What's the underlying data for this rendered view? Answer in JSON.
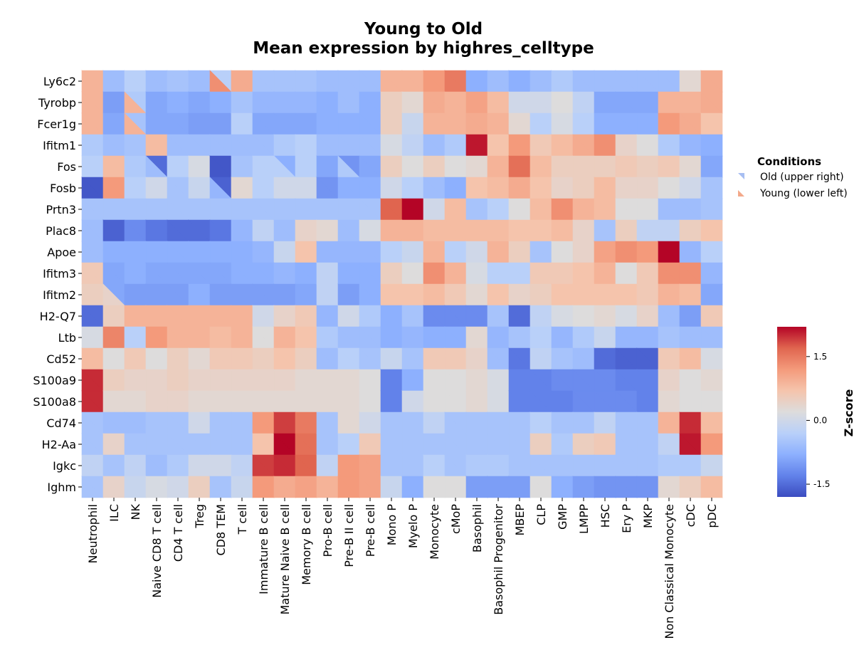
{
  "chart_data": {
    "type": "heatmap",
    "title": "Young to Old",
    "subtitle": "Mean expression by highres_celltype",
    "legend": {
      "title": "Conditions",
      "entries": [
        {
          "label": "Old (upper right)",
          "color": "#a7bef2"
        },
        {
          "label": "Young (lower left)",
          "color": "#f3a98a"
        }
      ]
    },
    "colorbar": {
      "label": "Z-score",
      "ticks": [
        "1.5",
        "0.0",
        "-1.5"
      ],
      "tick_values": [
        1.5,
        0.0,
        -1.5
      ],
      "range": [
        -1.8,
        2.2
      ],
      "colormap": "coolwarm"
    },
    "genes": [
      "Ly6c2",
      "Tyrobp",
      "Fcer1g",
      "Ifitm1",
      "Fos",
      "Fosb",
      "Prtn3",
      "Plac8",
      "Apoe",
      "Ifitm3",
      "Ifitm2",
      "H2-Q7",
      "Ltb",
      "Cd52",
      "S100a9",
      "S100a8",
      "Cd74",
      "H2-Aa",
      "Igkc",
      "Ighm"
    ],
    "cell_types": [
      "Neutrophil",
      "ILC",
      "NK",
      "Naive CD8 T cell",
      "CD4 T cell",
      "Treg",
      "CD8 TEM",
      "T cell",
      "Immature B cell",
      "Mature Naive B cell",
      "Memory B cell",
      "Pro-B cell",
      "Pre-B II cell",
      "Pre-B cell",
      "Mono P",
      "Myelo P",
      "Monocyte",
      "cMoP",
      "Basophil",
      "Basophil Progenitor",
      "MBEP",
      "CLP",
      "GMP",
      "LMPP",
      "HSC",
      "Ery P",
      "MKP",
      "Non Classical Monocyte",
      "cDC",
      "pDC"
    ],
    "old": [
      [
        0.9,
        -0.6,
        -0.3,
        -0.6,
        -0.5,
        -0.6,
        -0.3,
        1.0,
        -0.5,
        -0.5,
        -0.5,
        -0.6,
        -0.6,
        -0.6,
        0.9,
        0.9,
        1.2,
        1.5,
        -0.8,
        -0.6,
        -0.8,
        -0.6,
        -0.4,
        -0.6,
        -0.6,
        -0.6,
        -0.6,
        -0.6,
        0.3,
        1.0
      ],
      [
        0.9,
        -1.0,
        -0.4,
        -0.9,
        -0.8,
        -0.9,
        -0.8,
        -0.5,
        -0.7,
        -0.7,
        -0.7,
        -0.8,
        -0.6,
        -0.8,
        0.5,
        0.3,
        1.0,
        0.9,
        1.1,
        0.8,
        0.0,
        0.0,
        0.2,
        -0.2,
        -0.9,
        -0.9,
        -0.9,
        0.9,
        0.9,
        1.0
      ],
      [
        0.9,
        -0.9,
        -0.5,
        -0.9,
        -0.9,
        -1.0,
        -1.0,
        -0.3,
        -0.9,
        -0.9,
        -0.9,
        -0.8,
        -0.8,
        -0.8,
        0.5,
        -0.1,
        0.9,
        0.9,
        1.0,
        0.9,
        0.3,
        -0.3,
        0.1,
        -0.3,
        -0.8,
        -0.8,
        -0.8,
        1.2,
        1.0,
        0.7
      ],
      [
        -0.4,
        -0.6,
        -0.5,
        0.8,
        -0.6,
        -0.6,
        -0.6,
        -0.6,
        -0.6,
        -0.4,
        -0.3,
        -0.6,
        -0.6,
        -0.6,
        0.1,
        -0.2,
        -0.6,
        -0.4,
        2.1,
        0.7,
        1.2,
        0.6,
        0.8,
        1.0,
        1.3,
        0.4,
        0.2,
        -0.4,
        -0.7,
        -0.8
      ],
      [
        -0.3,
        0.8,
        -0.4,
        -1.5,
        -0.3,
        0.1,
        -1.7,
        -0.5,
        -0.3,
        -0.8,
        -0.3,
        -0.9,
        -1.1,
        -0.9,
        0.5,
        0.2,
        0.5,
        0.2,
        0.3,
        0.9,
        1.6,
        0.8,
        0.5,
        0.5,
        0.5,
        0.6,
        0.5,
        0.6,
        0.3,
        -0.9
      ],
      [
        -1.7,
        1.2,
        -0.3,
        0.0,
        -0.5,
        -0.1,
        -1.6,
        0.3,
        -0.3,
        0.0,
        0.0,
        -1.1,
        -0.8,
        -0.8,
        0.0,
        -0.3,
        -0.6,
        -0.8,
        0.7,
        0.8,
        1.0,
        0.7,
        0.4,
        0.5,
        0.8,
        0.4,
        0.4,
        0.2,
        0.0,
        -0.5
      ],
      [
        -0.5,
        -0.5,
        -0.5,
        -0.5,
        -0.5,
        -0.5,
        -0.5,
        -0.5,
        -0.5,
        -0.5,
        -0.5,
        -0.5,
        -0.5,
        -0.5,
        1.7,
        2.2,
        0.0,
        0.8,
        -0.5,
        -0.3,
        0.2,
        0.8,
        1.3,
        0.9,
        0.8,
        0.2,
        0.2,
        -0.6,
        -0.6,
        -0.5
      ],
      [
        -0.6,
        -1.6,
        -1.2,
        -1.4,
        -1.5,
        -1.5,
        -1.4,
        -0.7,
        -0.2,
        -0.6,
        0.4,
        0.3,
        -0.6,
        0.1,
        0.9,
        0.9,
        0.8,
        0.8,
        0.8,
        0.8,
        0.7,
        0.7,
        0.8,
        0.4,
        -0.5,
        0.5,
        -0.2,
        -0.2,
        0.5,
        0.7
      ],
      [
        -0.6,
        -0.8,
        -0.8,
        -0.8,
        -0.8,
        -0.8,
        -0.8,
        -0.8,
        -0.7,
        -0.1,
        0.7,
        -0.7,
        -0.7,
        -0.7,
        -0.3,
        -0.1,
        0.9,
        -0.3,
        0.0,
        0.9,
        0.5,
        -0.5,
        0.2,
        0.4,
        1.1,
        1.3,
        1.2,
        2.2,
        -0.7,
        -0.3
      ],
      [
        0.6,
        -0.9,
        -0.8,
        -0.9,
        -0.9,
        -0.9,
        -0.9,
        -0.8,
        -0.8,
        -0.7,
        -0.8,
        -0.2,
        -0.8,
        -0.8,
        0.5,
        0.2,
        1.3,
        0.9,
        0.1,
        -0.3,
        -0.3,
        0.6,
        0.6,
        0.7,
        0.9,
        0.2,
        0.6,
        1.3,
        1.3,
        -0.7
      ],
      [
        0.5,
        -0.9,
        -1.0,
        -1.0,
        -1.0,
        -0.8,
        -1.0,
        -1.0,
        -1.0,
        -1.0,
        -0.9,
        -0.2,
        -1.0,
        -0.8,
        0.7,
        0.7,
        0.8,
        0.6,
        0.3,
        0.7,
        0.4,
        0.5,
        0.7,
        0.7,
        0.7,
        0.7,
        0.6,
        0.9,
        0.8,
        -0.9
      ],
      [
        -1.5,
        0.5,
        0.9,
        0.9,
        0.9,
        0.9,
        0.9,
        0.9,
        0.0,
        0.4,
        0.6,
        -0.7,
        0.0,
        -0.4,
        -0.8,
        -0.5,
        -1.2,
        -1.2,
        -1.2,
        -0.5,
        -1.5,
        -0.2,
        0.1,
        0.2,
        0.3,
        0.1,
        0.4,
        -0.6,
        -1.0,
        0.6
      ],
      [
        0.1,
        1.4,
        -0.3,
        1.2,
        0.9,
        0.9,
        0.8,
        0.9,
        0.2,
        0.9,
        0.7,
        -0.4,
        -0.6,
        -0.6,
        -0.8,
        -0.7,
        -0.8,
        -0.8,
        0.3,
        -0.7,
        -0.5,
        -0.3,
        -0.7,
        -0.4,
        -0.1,
        -0.7,
        -0.7,
        -0.5,
        -0.6,
        -0.6
      ],
      [
        0.8,
        0.2,
        0.6,
        0.2,
        0.5,
        0.3,
        0.6,
        0.6,
        0.5,
        0.7,
        0.5,
        -0.6,
        -0.3,
        -0.5,
        -0.1,
        -0.5,
        0.6,
        0.6,
        0.4,
        -0.6,
        -1.4,
        -0.2,
        -0.5,
        -0.6,
        -1.5,
        -1.6,
        -1.6,
        0.6,
        0.8,
        0.1
      ],
      [
        2.0,
        0.5,
        0.4,
        0.4,
        0.5,
        0.4,
        0.4,
        0.4,
        0.4,
        0.4,
        0.3,
        0.3,
        0.3,
        0.2,
        -1.3,
        -0.8,
        0.2,
        0.2,
        0.3,
        0.1,
        -1.3,
        -1.3,
        -1.2,
        -1.2,
        -1.2,
        -1.3,
        -1.3,
        0.4,
        0.2,
        0.3
      ],
      [
        2.0,
        0.3,
        0.3,
        0.4,
        0.4,
        0.3,
        0.3,
        0.3,
        0.3,
        0.3,
        0.3,
        0.3,
        0.3,
        0.2,
        -1.3,
        0.0,
        0.2,
        0.2,
        0.3,
        0.1,
        -1.3,
        -1.3,
        -1.3,
        -1.2,
        -1.2,
        -1.2,
        -1.3,
        0.3,
        0.2,
        0.2
      ],
      [
        -0.5,
        -0.6,
        -0.6,
        -0.5,
        -0.5,
        0.0,
        -0.5,
        -0.5,
        1.2,
        1.9,
        1.5,
        -0.5,
        0.3,
        0.0,
        -0.5,
        -0.5,
        -0.2,
        -0.5,
        -0.5,
        -0.5,
        -0.5,
        -0.3,
        -0.5,
        -0.5,
        -0.2,
        -0.5,
        -0.5,
        0.9,
        2.0,
        0.8
      ],
      [
        -0.5,
        0.4,
        -0.5,
        -0.5,
        -0.5,
        -0.5,
        -0.5,
        -0.5,
        0.7,
        2.2,
        1.6,
        -0.5,
        -0.3,
        0.6,
        -0.5,
        -0.5,
        -0.5,
        -0.5,
        -0.5,
        -0.5,
        -0.5,
        0.5,
        -0.4,
        0.5,
        0.6,
        -0.5,
        -0.5,
        -0.2,
        2.1,
        1.2
      ],
      [
        -0.2,
        -0.5,
        -0.2,
        -0.6,
        -0.4,
        0.0,
        0.0,
        -0.2,
        1.9,
        2.0,
        1.7,
        -0.2,
        1.2,
        1.1,
        -0.5,
        -0.5,
        -0.3,
        -0.5,
        -0.4,
        -0.4,
        -0.5,
        -0.5,
        -0.5,
        -0.5,
        -0.5,
        -0.5,
        -0.5,
        -0.4,
        -0.4,
        -0.1
      ],
      [
        -0.5,
        0.4,
        -0.1,
        0.1,
        0.0,
        0.5,
        -0.5,
        -0.1,
        1.2,
        1.0,
        1.1,
        0.9,
        1.2,
        1.1,
        -0.1,
        -0.8,
        0.2,
        0.2,
        -1.0,
        -1.0,
        -1.0,
        0.2,
        -0.8,
        -1.0,
        -1.1,
        -1.1,
        -1.1,
        0.3,
        0.5,
        0.8
      ]
    ],
    "young": [
      [
        0.9,
        -0.6,
        -0.3,
        -0.6,
        -0.5,
        -0.6,
        1.3,
        1.0,
        -0.5,
        -0.5,
        -0.5,
        -0.6,
        -0.6,
        -0.6,
        0.9,
        0.9,
        1.2,
        1.5,
        -0.8,
        -0.6,
        -0.8,
        -0.6,
        -0.4,
        -0.6,
        -0.6,
        -0.6,
        -0.6,
        -0.6,
        0.3,
        1.0
      ],
      [
        0.9,
        -1.0,
        0.9,
        -0.9,
        -0.8,
        -0.9,
        -0.8,
        -0.5,
        -0.7,
        -0.7,
        -0.7,
        -0.8,
        -0.6,
        -0.8,
        0.5,
        0.3,
        1.0,
        0.9,
        1.1,
        0.8,
        0.0,
        0.0,
        0.2,
        -0.2,
        -0.9,
        -0.9,
        -0.9,
        0.9,
        0.9,
        1.0
      ],
      [
        0.9,
        -0.9,
        0.9,
        -0.9,
        -0.9,
        -1.0,
        -1.0,
        -0.3,
        -0.9,
        -0.9,
        -0.9,
        -0.8,
        -0.8,
        -0.8,
        0.5,
        -0.1,
        0.9,
        0.9,
        1.0,
        0.9,
        0.3,
        -0.3,
        0.1,
        -0.3,
        -0.8,
        -0.8,
        -0.8,
        1.2,
        1.0,
        0.7
      ],
      [
        -0.4,
        -0.6,
        -0.5,
        0.8,
        -0.6,
        -0.6,
        -0.6,
        -0.6,
        -0.6,
        -0.4,
        -0.3,
        -0.6,
        -0.6,
        -0.6,
        0.1,
        -0.2,
        -0.6,
        -0.4,
        2.1,
        0.7,
        1.2,
        0.6,
        0.8,
        1.0,
        1.3,
        0.4,
        0.2,
        -0.4,
        -0.7,
        -0.8
      ],
      [
        -0.3,
        0.8,
        -0.4,
        -0.6,
        -0.3,
        0.1,
        -1.7,
        -0.5,
        -0.3,
        -0.3,
        -0.3,
        -0.9,
        -0.4,
        -0.9,
        0.5,
        0.2,
        0.5,
        0.2,
        0.3,
        0.9,
        1.6,
        0.8,
        0.5,
        0.5,
        0.5,
        0.6,
        0.5,
        0.6,
        0.3,
        -0.9
      ],
      [
        -1.7,
        1.2,
        -0.3,
        0.0,
        -0.5,
        -0.1,
        -0.7,
        0.3,
        -0.3,
        0.0,
        0.0,
        -1.1,
        -0.8,
        -0.8,
        0.0,
        -0.3,
        -0.6,
        -0.8,
        0.7,
        0.8,
        1.0,
        0.7,
        0.4,
        0.5,
        0.8,
        0.4,
        0.4,
        0.2,
        0.0,
        -0.5
      ],
      [
        -0.5,
        -0.5,
        -0.5,
        -0.5,
        -0.5,
        -0.5,
        -0.5,
        -0.5,
        -0.5,
        -0.5,
        -0.5,
        -0.5,
        -0.5,
        -0.5,
        1.7,
        2.2,
        0.0,
        0.8,
        -0.5,
        -0.3,
        0.2,
        0.8,
        1.3,
        0.9,
        0.8,
        0.2,
        0.2,
        -0.6,
        -0.6,
        -0.5
      ],
      [
        -0.6,
        -1.6,
        -1.2,
        -1.4,
        -1.5,
        -1.5,
        -1.4,
        -0.7,
        -0.2,
        -0.6,
        0.4,
        0.3,
        -0.6,
        0.1,
        0.9,
        0.9,
        0.8,
        0.8,
        0.8,
        0.8,
        0.7,
        0.7,
        0.8,
        0.4,
        -0.5,
        0.5,
        -0.2,
        -0.2,
        0.5,
        0.7
      ],
      [
        -0.6,
        -0.8,
        -0.8,
        -0.8,
        -0.8,
        -0.8,
        -0.8,
        -0.8,
        -0.7,
        -0.1,
        0.7,
        -0.7,
        -0.7,
        -0.7,
        -0.3,
        -0.1,
        0.9,
        -0.3,
        0.0,
        0.9,
        0.5,
        -0.5,
        0.2,
        0.4,
        1.1,
        1.3,
        1.2,
        2.2,
        -0.7,
        -0.3
      ],
      [
        0.6,
        -0.9,
        -0.8,
        -0.9,
        -0.9,
        -0.9,
        -0.9,
        -0.8,
        -0.8,
        -0.7,
        -0.8,
        -0.2,
        -0.8,
        -0.8,
        0.5,
        0.2,
        1.3,
        0.9,
        0.1,
        -0.3,
        -0.3,
        0.6,
        0.6,
        0.7,
        0.9,
        0.2,
        0.6,
        1.3,
        1.3,
        -0.7
      ],
      [
        0.5,
        0.4,
        -1.0,
        -1.0,
        -1.0,
        -0.8,
        -1.0,
        -1.0,
        -1.0,
        -1.0,
        -0.9,
        -0.2,
        -1.0,
        -0.8,
        0.7,
        0.7,
        0.8,
        0.6,
        0.3,
        0.7,
        0.4,
        0.5,
        0.7,
        0.7,
        0.7,
        0.7,
        0.6,
        0.9,
        0.8,
        -0.9
      ],
      [
        -1.5,
        0.5,
        0.9,
        0.9,
        0.9,
        0.9,
        0.9,
        0.9,
        0.0,
        0.4,
        0.6,
        -0.7,
        0.0,
        -0.4,
        -0.8,
        -0.5,
        -1.2,
        -1.2,
        -1.2,
        -0.5,
        -1.5,
        -0.2,
        0.1,
        0.2,
        0.3,
        0.1,
        0.4,
        -0.6,
        -1.0,
        0.6
      ],
      [
        0.1,
        1.4,
        -0.3,
        1.2,
        0.9,
        0.9,
        0.8,
        0.9,
        0.2,
        0.9,
        0.7,
        -0.4,
        -0.6,
        -0.6,
        -0.8,
        -0.7,
        -0.8,
        -0.8,
        0.3,
        -0.7,
        -0.5,
        -0.3,
        -0.7,
        -0.4,
        -0.1,
        -0.7,
        -0.7,
        -0.5,
        -0.6,
        -0.6
      ],
      [
        0.8,
        0.2,
        0.6,
        0.2,
        0.5,
        0.3,
        0.6,
        0.6,
        0.5,
        0.7,
        0.5,
        -0.6,
        -0.3,
        -0.5,
        -0.1,
        -0.5,
        0.6,
        0.6,
        0.4,
        -0.6,
        -1.4,
        -0.2,
        -0.5,
        -0.6,
        -1.5,
        -1.6,
        -1.6,
        0.6,
        0.8,
        0.1
      ],
      [
        2.0,
        0.5,
        0.4,
        0.4,
        0.5,
        0.4,
        0.4,
        0.4,
        0.4,
        0.4,
        0.3,
        0.3,
        0.3,
        0.2,
        -1.3,
        -0.8,
        0.2,
        0.2,
        0.3,
        0.1,
        -1.3,
        -1.3,
        -1.2,
        -1.2,
        -1.2,
        -1.3,
        -1.3,
        0.4,
        0.2,
        0.3
      ],
      [
        2.0,
        0.3,
        0.3,
        0.4,
        0.4,
        0.3,
        0.3,
        0.3,
        0.3,
        0.3,
        0.3,
        0.3,
        0.3,
        0.2,
        -1.3,
        0.0,
        0.2,
        0.2,
        0.3,
        0.1,
        -1.3,
        -1.3,
        -1.3,
        -1.2,
        -1.2,
        -1.2,
        -1.3,
        0.3,
        0.2,
        0.2
      ],
      [
        -0.5,
        -0.6,
        -0.6,
        -0.5,
        -0.5,
        0.0,
        -0.5,
        -0.5,
        1.2,
        1.9,
        1.5,
        -0.5,
        0.3,
        0.0,
        -0.5,
        -0.5,
        -0.2,
        -0.5,
        -0.5,
        -0.5,
        -0.5,
        -0.3,
        -0.5,
        -0.5,
        -0.2,
        -0.5,
        -0.5,
        0.9,
        2.0,
        0.8
      ],
      [
        -0.5,
        0.4,
        -0.5,
        -0.5,
        -0.5,
        -0.5,
        -0.5,
        -0.5,
        0.7,
        2.2,
        1.6,
        -0.5,
        -0.3,
        0.6,
        -0.5,
        -0.5,
        -0.5,
        -0.5,
        -0.5,
        -0.5,
        -0.5,
        0.5,
        -0.4,
        0.5,
        0.6,
        -0.5,
        -0.5,
        -0.2,
        2.1,
        1.2
      ],
      [
        -0.2,
        -0.5,
        -0.2,
        -0.6,
        -0.4,
        0.0,
        0.0,
        -0.2,
        1.9,
        2.0,
        1.7,
        -0.2,
        1.2,
        1.1,
        -0.5,
        -0.5,
        -0.3,
        -0.5,
        -0.4,
        -0.4,
        -0.5,
        -0.5,
        -0.5,
        -0.5,
        -0.5,
        -0.5,
        -0.5,
        -0.4,
        -0.4,
        -0.1
      ],
      [
        -0.5,
        0.4,
        -0.1,
        0.1,
        0.0,
        0.5,
        -0.5,
        -0.1,
        1.2,
        1.0,
        1.1,
        0.9,
        1.2,
        1.1,
        -0.1,
        -0.8,
        0.2,
        0.2,
        -1.0,
        -1.0,
        -1.0,
        0.2,
        -0.8,
        -1.0,
        -1.1,
        -1.1,
        -1.1,
        0.3,
        0.5,
        0.8
      ]
    ]
  }
}
